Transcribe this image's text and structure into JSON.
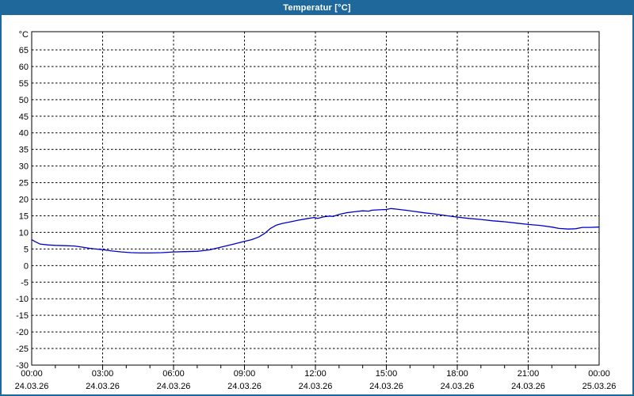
{
  "window": {
    "title": "Temperatur [°C]"
  },
  "colors": {
    "titlebar_bg": "#1E689C",
    "frame_border": "#1E689C",
    "curve": "#0000C8",
    "grid": "#000000",
    "axis": "#000000",
    "text": "#000000",
    "plot_bg": "#FFFFFF",
    "window_bg": "#FFFFFF"
  },
  "chart_data": {
    "type": "line",
    "title": "Temperatur [°C]",
    "xlabel": "",
    "ylabel": "°C",
    "ylim": [
      -30,
      70.5
    ],
    "xlim_hours": [
      0,
      24
    ],
    "grid": "dashed",
    "legend": "none",
    "y_ticks": [
      -30,
      -25,
      -20,
      -15,
      -10,
      -5,
      0,
      5,
      10,
      15,
      20,
      25,
      30,
      35,
      40,
      45,
      50,
      55,
      60,
      65
    ],
    "x_ticks": [
      {
        "hour": 0,
        "time": "00:00",
        "date": "24.03.26"
      },
      {
        "hour": 3,
        "time": "03:00",
        "date": "24.03.26"
      },
      {
        "hour": 6,
        "time": "06:00",
        "date": "24.03.26"
      },
      {
        "hour": 9,
        "time": "09:00",
        "date": "24.03.26"
      },
      {
        "hour": 12,
        "time": "12:00",
        "date": "24.03.26"
      },
      {
        "hour": 15,
        "time": "15:00",
        "date": "24.03.26"
      },
      {
        "hour": 18,
        "time": "18:00",
        "date": "24.03.26"
      },
      {
        "hour": 21,
        "time": "21:00",
        "date": "24.03.26"
      },
      {
        "hour": 24,
        "time": "00:00",
        "date": "25.03.26"
      }
    ],
    "minor_tick_every_hours": 1,
    "series": [
      {
        "name": "Temperatur",
        "unit": "°C",
        "color": "#0000C8",
        "points": [
          [
            0.0,
            7.8
          ],
          [
            0.15,
            7.2
          ],
          [
            0.35,
            6.5
          ],
          [
            0.7,
            6.2
          ],
          [
            1.0,
            6.1
          ],
          [
            1.4,
            6.0
          ],
          [
            1.8,
            5.9
          ],
          [
            2.1,
            5.6
          ],
          [
            2.45,
            5.2
          ],
          [
            2.7,
            5.0
          ],
          [
            3.0,
            4.8
          ],
          [
            3.4,
            4.4
          ],
          [
            3.8,
            4.1
          ],
          [
            4.2,
            3.9
          ],
          [
            4.6,
            3.8
          ],
          [
            5.0,
            3.8
          ],
          [
            5.5,
            3.9
          ],
          [
            6.0,
            4.1
          ],
          [
            6.5,
            4.2
          ],
          [
            7.0,
            4.3
          ],
          [
            7.5,
            4.7
          ],
          [
            7.8,
            5.2
          ],
          [
            8.1,
            5.7
          ],
          [
            8.5,
            6.4
          ],
          [
            9.0,
            7.3
          ],
          [
            9.3,
            7.8
          ],
          [
            9.6,
            8.6
          ],
          [
            9.85,
            9.7
          ],
          [
            10.1,
            11.2
          ],
          [
            10.35,
            12.2
          ],
          [
            10.6,
            12.7
          ],
          [
            10.9,
            13.1
          ],
          [
            11.3,
            13.7
          ],
          [
            11.7,
            14.2
          ],
          [
            11.95,
            14.5
          ],
          [
            12.1,
            14.2
          ],
          [
            12.35,
            14.7
          ],
          [
            12.6,
            14.9
          ],
          [
            12.75,
            14.8
          ],
          [
            13.0,
            15.4
          ],
          [
            13.3,
            15.9
          ],
          [
            13.65,
            16.2
          ],
          [
            14.0,
            16.5
          ],
          [
            14.25,
            16.4
          ],
          [
            14.4,
            16.7
          ],
          [
            14.7,
            16.8
          ],
          [
            15.0,
            16.9
          ],
          [
            15.2,
            17.2
          ],
          [
            15.45,
            17.0
          ],
          [
            15.8,
            16.7
          ],
          [
            16.2,
            16.3
          ],
          [
            16.6,
            15.9
          ],
          [
            17.0,
            15.6
          ],
          [
            17.5,
            15.1
          ],
          [
            18.0,
            14.6
          ],
          [
            18.5,
            14.2
          ],
          [
            19.0,
            13.9
          ],
          [
            19.5,
            13.5
          ],
          [
            20.0,
            13.2
          ],
          [
            20.5,
            12.8
          ],
          [
            21.0,
            12.4
          ],
          [
            21.5,
            12.1
          ],
          [
            22.0,
            11.6
          ],
          [
            22.3,
            11.2
          ],
          [
            22.7,
            11.0
          ],
          [
            23.0,
            11.1
          ],
          [
            23.3,
            11.5
          ],
          [
            23.6,
            11.5
          ],
          [
            24.0,
            11.6
          ]
        ]
      }
    ]
  }
}
